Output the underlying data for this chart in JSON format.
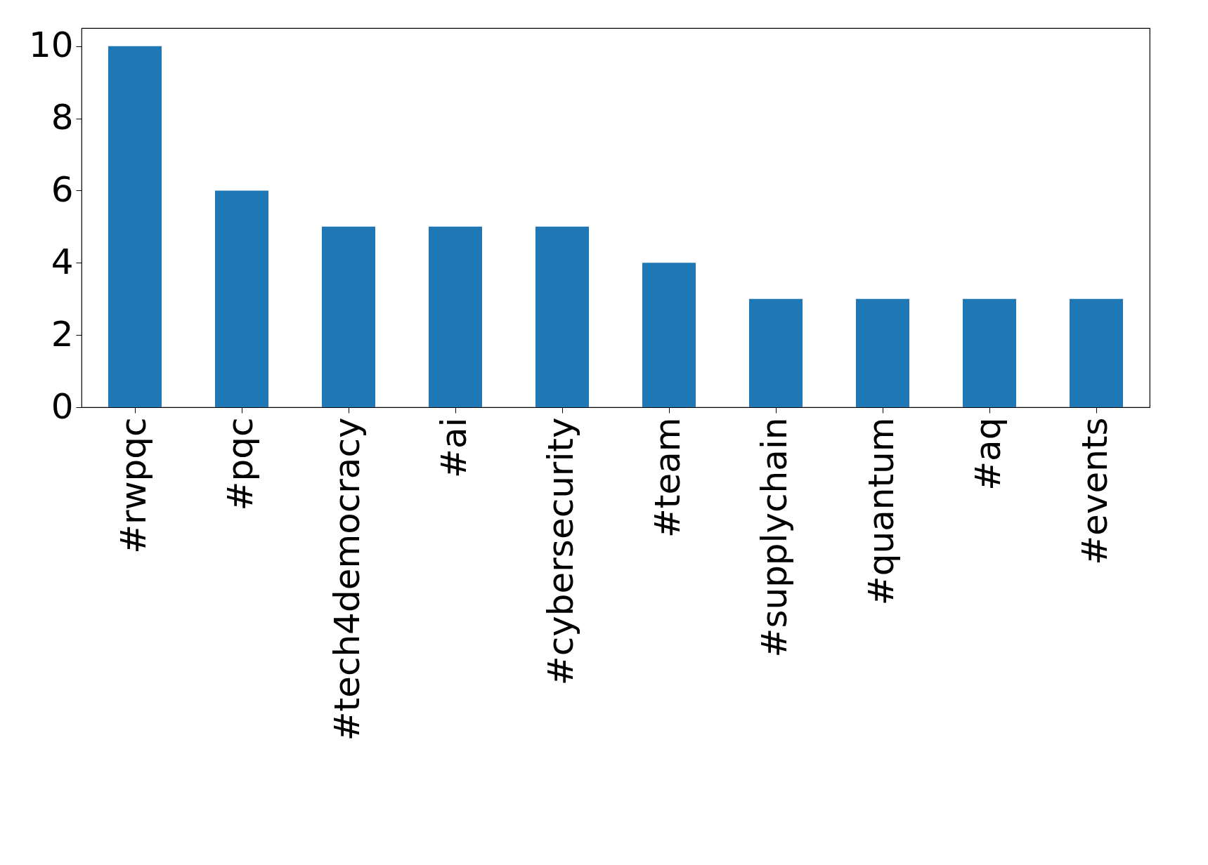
{
  "chart_data": {
    "type": "bar",
    "categories": [
      "#rwpqc",
      "#pqc",
      "#tech4democracy",
      "#ai",
      "#cybersecurity",
      "#team",
      "#supplychain",
      "#quantum",
      "#aq",
      "#events"
    ],
    "values": [
      10,
      6,
      5,
      5,
      5,
      4,
      3,
      3,
      3,
      3
    ],
    "color": "#1f77b4",
    "ylim": [
      0,
      10.5
    ],
    "yticks": [
      0,
      2,
      4,
      6,
      8,
      10
    ],
    "grid": false
  }
}
